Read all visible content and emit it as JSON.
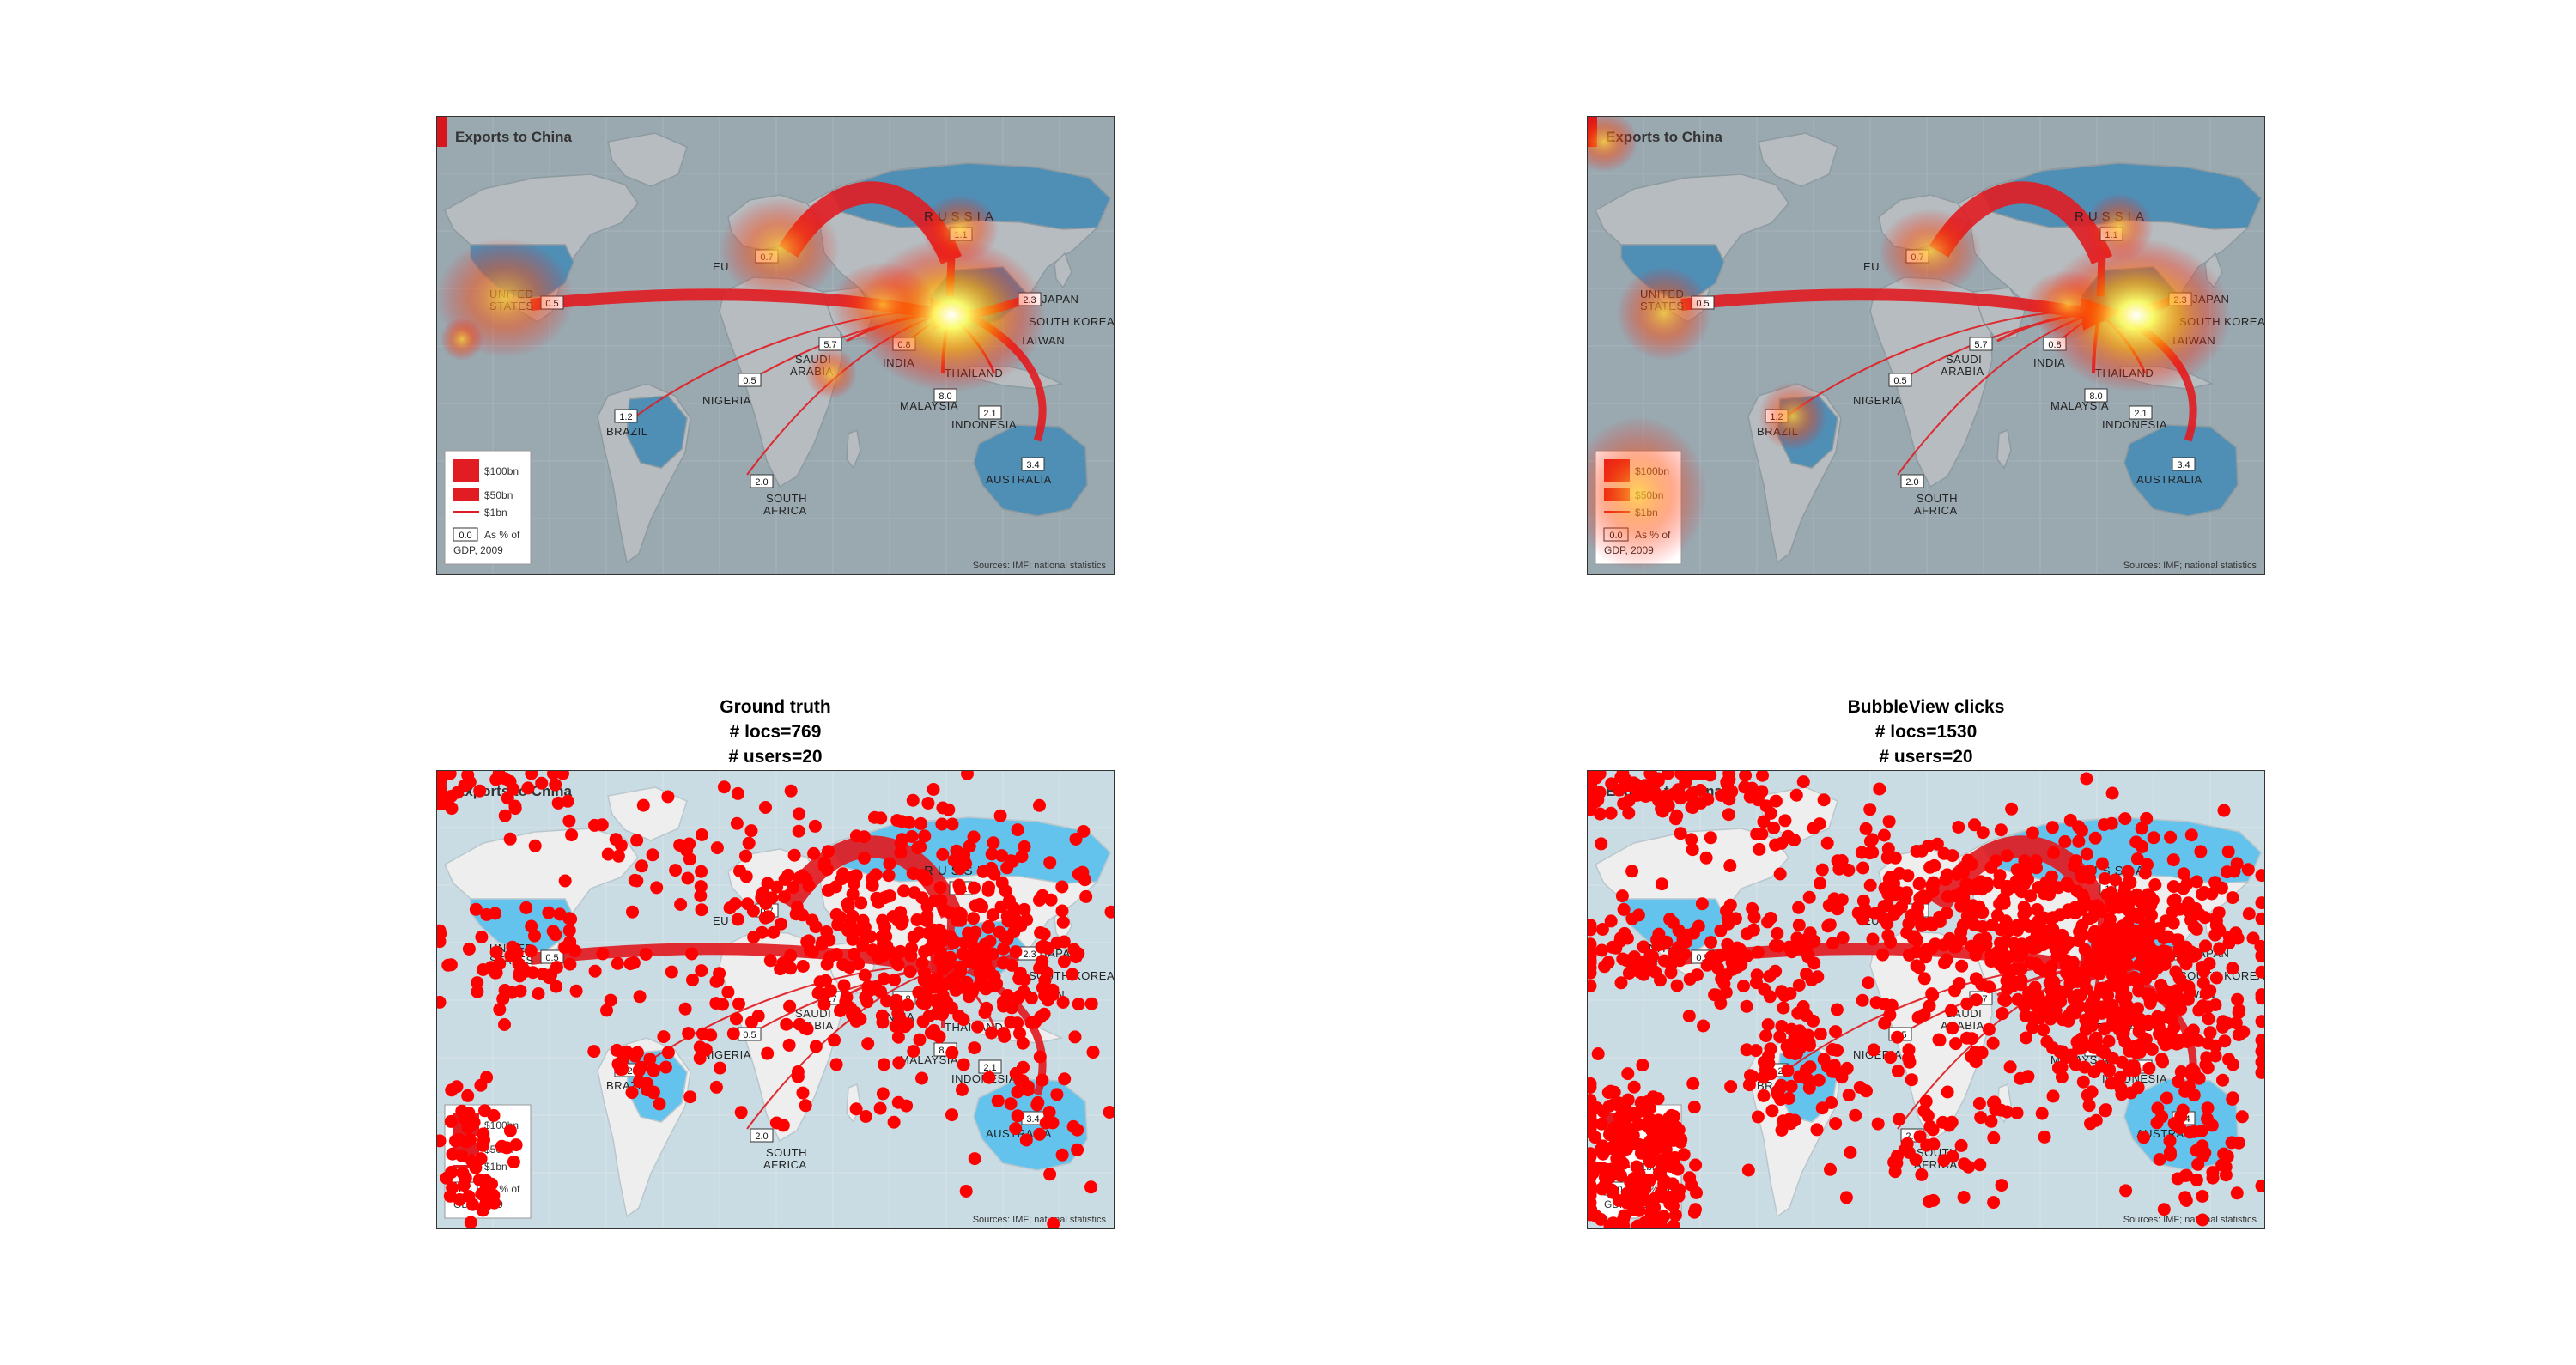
{
  "map": {
    "title": "Exports to China",
    "source": "Sources: IMF; national statistics",
    "colors": {
      "ocean": "#c9dbe3",
      "land": "#eeeeee",
      "highlight": "#63c3ec",
      "arrow": "#e11c22",
      "ocean_heat": "#9aa8b0",
      "land_heat": "#b6bcbf",
      "highlight_heat": "#4f8fb6",
      "dot": "#ff0000"
    },
    "labels": [
      {
        "id": "russia",
        "text": "RUSSIA"
      },
      {
        "id": "eu",
        "text": "EU"
      },
      {
        "id": "us1",
        "text": "UNITED"
      },
      {
        "id": "us2",
        "text": "STATES"
      },
      {
        "id": "japan",
        "text": "JAPAN"
      },
      {
        "id": "skorea",
        "text": "SOUTH KOREA"
      },
      {
        "id": "taiwan",
        "text": "TAIWAN"
      },
      {
        "id": "saudi1",
        "text": "SAUDI"
      },
      {
        "id": "saudi2",
        "text": "ARABIA"
      },
      {
        "id": "india",
        "text": "INDIA"
      },
      {
        "id": "thailand",
        "text": "THAILAND"
      },
      {
        "id": "nigeria",
        "text": "NIGERIA"
      },
      {
        "id": "malaysia",
        "text": "MALAYSIA"
      },
      {
        "id": "indonesia",
        "text": "INDONESIA"
      },
      {
        "id": "brazil",
        "text": "BRAZIL"
      },
      {
        "id": "australia",
        "text": "AUSTRALIA"
      },
      {
        "id": "safrica1",
        "text": "SOUTH"
      },
      {
        "id": "safrica2",
        "text": "AFRICA"
      }
    ],
    "values": [
      {
        "id": "us",
        "text": "0.5"
      },
      {
        "id": "eu",
        "text": "0.7"
      },
      {
        "id": "russia",
        "text": "1.1"
      },
      {
        "id": "saudi",
        "text": "5.7"
      },
      {
        "id": "india",
        "text": "0.8"
      },
      {
        "id": "nigeria",
        "text": "0.5"
      },
      {
        "id": "malaysia",
        "text": "8.0"
      },
      {
        "id": "indonesia",
        "text": "2.1"
      },
      {
        "id": "brazil",
        "text": "1.2"
      },
      {
        "id": "safrica",
        "text": "2.0"
      },
      {
        "id": "australia",
        "text": "3.4"
      },
      {
        "id": "japan",
        "text": "2.3"
      }
    ],
    "legend": {
      "big": "$100bn",
      "mid": "$50bn",
      "small": "$1bn",
      "box_value": "0.0",
      "note1": "As % of",
      "note2": "GDP, 2009"
    }
  },
  "panels": {
    "gt": {
      "title": "Ground truth",
      "locs": "# locs=769",
      "users": "# users=20"
    },
    "bv": {
      "title": "BubbleView clicks",
      "locs": "# locs=1530",
      "users": "# users=20"
    }
  }
}
